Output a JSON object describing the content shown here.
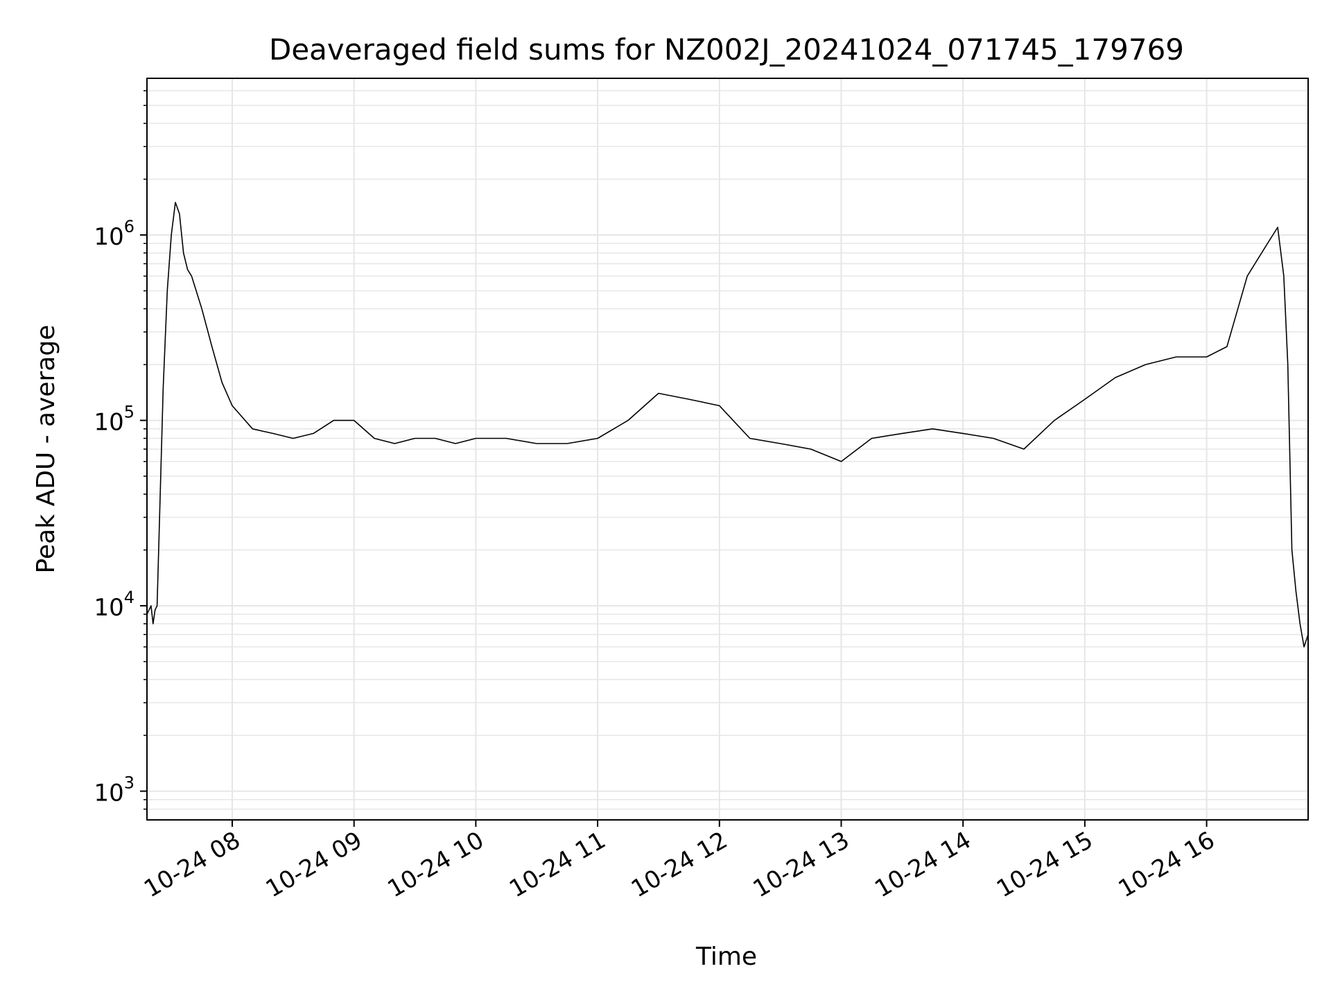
{
  "chart_data": {
    "type": "line",
    "title": "Deaveraged field sums for NZ002J_20241024_071745_179769",
    "xlabel": "Time",
    "ylabel": "Peak ADU - average",
    "x_range": [
      "2024-10-24 07:18",
      "2024-10-24 16:50"
    ],
    "ylim": [
      700,
      7000000
    ],
    "y_scale": "log",
    "grid": true,
    "grid_minor": true,
    "legend": "none",
    "line_color": "#000000",
    "grid_color": "#e6e6e6",
    "xticks": [
      {
        "t": "2024-10-24 08:00",
        "label": "10-24 08"
      },
      {
        "t": "2024-10-24 09:00",
        "label": "10-24 09"
      },
      {
        "t": "2024-10-24 10:00",
        "label": "10-24 10"
      },
      {
        "t": "2024-10-24 11:00",
        "label": "10-24 11"
      },
      {
        "t": "2024-10-24 12:00",
        "label": "10-24 12"
      },
      {
        "t": "2024-10-24 13:00",
        "label": "10-24 13"
      },
      {
        "t": "2024-10-24 14:00",
        "label": "10-24 14"
      },
      {
        "t": "2024-10-24 15:00",
        "label": "10-24 15"
      },
      {
        "t": "2024-10-24 16:00",
        "label": "10-24 16"
      }
    ],
    "yticks": [
      {
        "value": 1000,
        "base": "10",
        "exp": "3"
      },
      {
        "value": 10000,
        "base": "10",
        "exp": "4"
      },
      {
        "value": 100000,
        "base": "10",
        "exp": "5"
      },
      {
        "value": 1000000,
        "base": "10",
        "exp": "6"
      }
    ],
    "series": [
      {
        "x": [
          "2024-10-24 07:18",
          "2024-10-24 07:20",
          "2024-10-24 07:21",
          "2024-10-24 07:22",
          "2024-10-24 07:23",
          "2024-10-24 07:24",
          "2024-10-24 07:26",
          "2024-10-24 07:28",
          "2024-10-24 07:30",
          "2024-10-24 07:32",
          "2024-10-24 07:34",
          "2024-10-24 07:36",
          "2024-10-24 07:38",
          "2024-10-24 07:40",
          "2024-10-24 07:45",
          "2024-10-24 07:50",
          "2024-10-24 07:55",
          "2024-10-24 08:00",
          "2024-10-24 08:10",
          "2024-10-24 08:20",
          "2024-10-24 08:30",
          "2024-10-24 08:40",
          "2024-10-24 08:50",
          "2024-10-24 09:00",
          "2024-10-24 09:10",
          "2024-10-24 09:20",
          "2024-10-24 09:30",
          "2024-10-24 09:40",
          "2024-10-24 09:50",
          "2024-10-24 10:00",
          "2024-10-24 10:15",
          "2024-10-24 10:30",
          "2024-10-24 10:45",
          "2024-10-24 11:00",
          "2024-10-24 11:15",
          "2024-10-24 11:30",
          "2024-10-24 11:45",
          "2024-10-24 12:00",
          "2024-10-24 12:15",
          "2024-10-24 12:30",
          "2024-10-24 12:45",
          "2024-10-24 13:00",
          "2024-10-24 13:15",
          "2024-10-24 13:30",
          "2024-10-24 13:45",
          "2024-10-24 14:00",
          "2024-10-24 14:15",
          "2024-10-24 14:30",
          "2024-10-24 14:45",
          "2024-10-24 15:00",
          "2024-10-24 15:15",
          "2024-10-24 15:30",
          "2024-10-24 15:45",
          "2024-10-24 16:00",
          "2024-10-24 16:10",
          "2024-10-24 16:20",
          "2024-10-24 16:30",
          "2024-10-24 16:35",
          "2024-10-24 16:38",
          "2024-10-24 16:40",
          "2024-10-24 16:42",
          "2024-10-24 16:44",
          "2024-10-24 16:46",
          "2024-10-24 16:48",
          "2024-10-24 16:50"
        ],
        "y": [
          9000,
          10000,
          8000,
          9500,
          10000,
          25000,
          150000,
          500000,
          1000000,
          1500000,
          1300000,
          800000,
          650000,
          600000,
          400000,
          250000,
          160000,
          120000,
          90000,
          85000,
          80000,
          85000,
          100000,
          100000,
          80000,
          75000,
          80000,
          80000,
          75000,
          80000,
          80000,
          75000,
          75000,
          80000,
          100000,
          140000,
          130000,
          120000,
          80000,
          75000,
          70000,
          60000,
          80000,
          85000,
          90000,
          85000,
          80000,
          70000,
          100000,
          130000,
          170000,
          200000,
          220000,
          220000,
          250000,
          600000,
          900000,
          1100000,
          600000,
          200000,
          20000,
          12000,
          8000,
          6000,
          7000
        ]
      }
    ]
  }
}
